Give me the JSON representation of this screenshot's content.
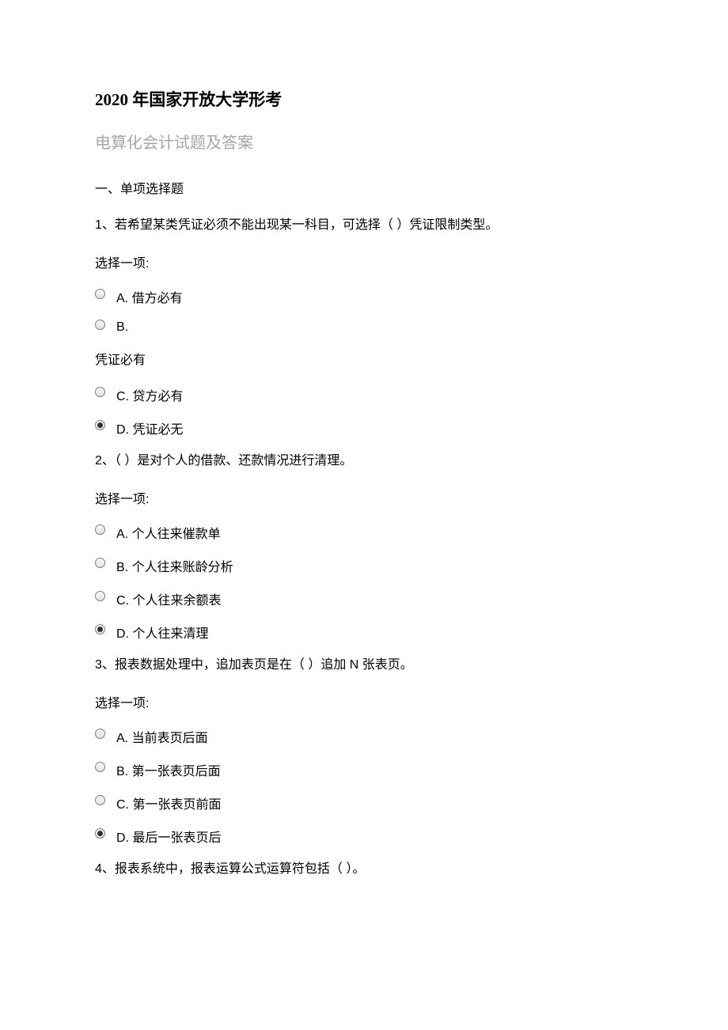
{
  "document": {
    "title": "2020 年国家开放大学形考",
    "subtitle": "电算化会计试题及答案",
    "section_header": "一、单项选择题",
    "colors": {
      "background": "#ffffff",
      "title_color": "#000000",
      "subtitle_color": "#a6a6a6",
      "text_color": "#000000",
      "radio_border": "#808080",
      "radio_dot": "#333333"
    },
    "typography": {
      "title_fontsize": 21,
      "subtitle_fontsize": 20,
      "body_fontsize": 16,
      "title_weight": "bold"
    },
    "questions": [
      {
        "number": "1",
        "text": "1、若希望某类凭证必须不能出现某一科目，可选择（  ）凭证限制类型。",
        "prompt": "选择一项:",
        "options": [
          {
            "label": "A. 借方必有",
            "selected": false
          },
          {
            "label": "B.",
            "selected": false,
            "continuation": "凭证必有"
          },
          {
            "label": "C. 贷方必有",
            "selected": false
          },
          {
            "label": "D. 凭证必无",
            "selected": true
          }
        ]
      },
      {
        "number": "2",
        "text": "2、（  ）是对个人的借款、还款情况进行清理。",
        "prompt": "选择一项:",
        "options": [
          {
            "label": "A. 个人往来催款单",
            "selected": false
          },
          {
            "label": "B. 个人往来账龄分析",
            "selected": false
          },
          {
            "label": "C. 个人往来余额表",
            "selected": false
          },
          {
            "label": "D. 个人往来清理",
            "selected": true
          }
        ]
      },
      {
        "number": "3",
        "text": "3、报表数据处理中，追加表页是在（        ）追加 N 张表页。",
        "prompt": "选择一项:",
        "options": [
          {
            "label": "A. 当前表页后面",
            "selected": false
          },
          {
            "label": "B. 第一张表页后面",
            "selected": false
          },
          {
            "label": "C. 第一张表页前面",
            "selected": false
          },
          {
            "label": "D. 最后一张表页后",
            "selected": true
          }
        ]
      },
      {
        "number": "4",
        "text": "4、报表系统中，报表运算公式运算符包括（    ）。"
      }
    ]
  }
}
